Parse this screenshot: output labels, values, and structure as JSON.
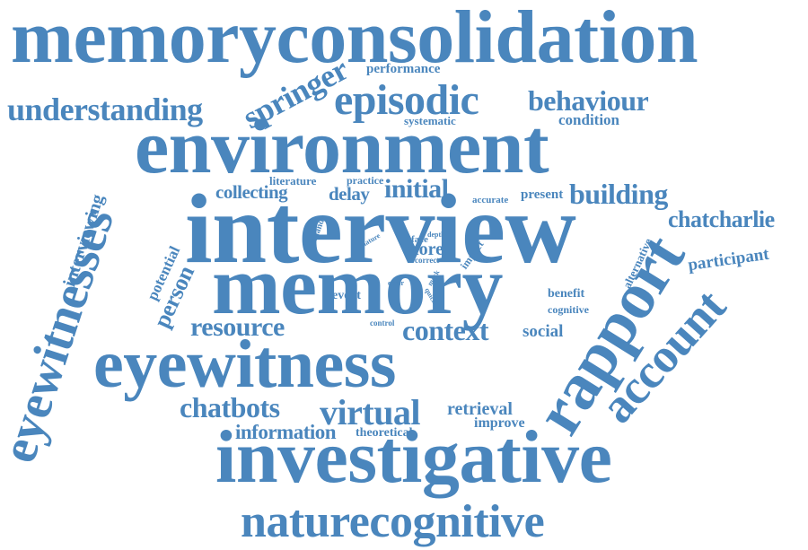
{
  "color": "#4a86bd",
  "words": [
    "memoryconsolidation",
    "environment",
    "interview",
    "memory",
    "eyewitness",
    "investigative",
    "naturecognitive",
    "eyewitnesses",
    "rapport",
    "account",
    "episodic",
    "behaviour",
    "understanding",
    "springer",
    "performance",
    "systematic",
    "condition",
    "chatcharlie",
    "building",
    "initial",
    "collecting",
    "delay",
    "literature",
    "practice",
    "accurate",
    "present",
    "interviewing",
    "resource",
    "context",
    "social",
    "person",
    "potential",
    "participant",
    "alternative",
    "chatbots",
    "virtual",
    "retrieval",
    "improve",
    "information",
    "theoretical",
    "event",
    "benefit",
    "cognitive",
    "more",
    "face",
    "depth",
    "correct",
    "impact",
    "demand",
    "nature",
    "error",
    "mock",
    "quick",
    "control"
  ]
}
